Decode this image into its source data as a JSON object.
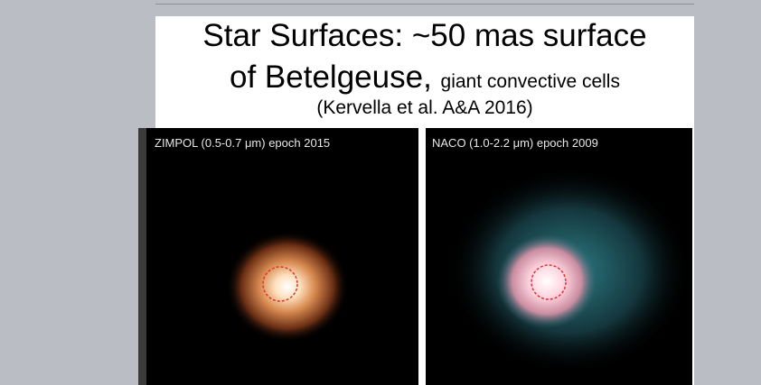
{
  "slide": {
    "title_line1": "Star Surfaces: ~50 mas surface",
    "title_line2_main": "of Betelgeuse,",
    "title_line2_small": "giant convective cells",
    "citation": "(Kervella et al. A&A 2016)",
    "panels": [
      {
        "label": "ZIMPOL (0.5-0.7 μm) epoch 2015"
      },
      {
        "label": "NACO (1.0-2.2 μm) epoch 2009"
      }
    ]
  }
}
